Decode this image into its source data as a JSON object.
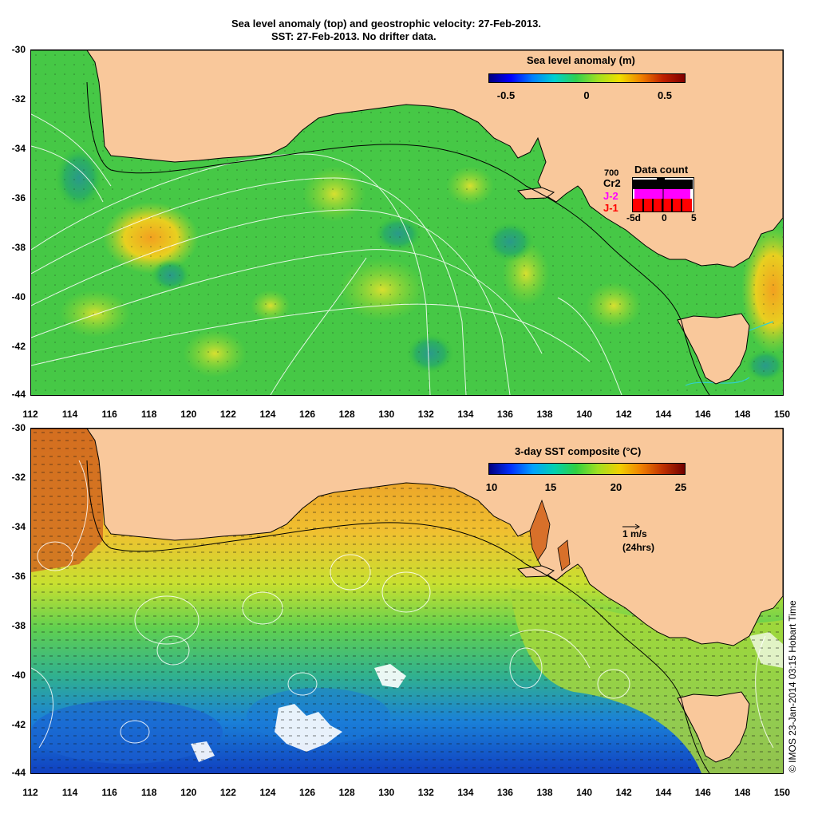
{
  "title": {
    "line1": "Sea level anomaly (top) and geostrophic velocity: 27-Feb-2013.",
    "line2": "SST: 27-Feb-2013. No drifter data."
  },
  "axes": {
    "lat_ticks": [
      "-30",
      "-32",
      "-34",
      "-36",
      "-38",
      "-40",
      "-42",
      "-44"
    ],
    "lon_ticks": [
      "112",
      "114",
      "116",
      "118",
      "120",
      "122",
      "124",
      "126",
      "128",
      "130",
      "132",
      "134",
      "136",
      "138",
      "140",
      "142",
      "144",
      "146",
      "148",
      "150"
    ]
  },
  "top_panel": {
    "colorbar_title": "Sea level anomaly (m)",
    "colorbar_labels": [
      "-0.5",
      "0",
      "0.5"
    ],
    "data_count": {
      "title": "Data count",
      "max_label": "700",
      "sat_cr2": "Cr2",
      "sat_j2": "J-2",
      "sat_j1": "J-1",
      "x_labels": [
        "-5d",
        "0",
        "5"
      ],
      "cr2_color": "#000000",
      "j2_color": "#ff00ff",
      "j1_color": "#ff0000"
    }
  },
  "bottom_panel": {
    "colorbar_title": "3-day SST composite (°C)",
    "colorbar_labels": [
      "10",
      "15",
      "20",
      "25"
    ],
    "vector_scale_label": "1 m/s",
    "vector_scale_sub": "(24hrs)"
  },
  "credit": "© IMOS 23-Jan-2014 03:15 Hobart Time",
  "colors": {
    "land": "#f9c89b",
    "slа_ocean": "#3fcf3f",
    "sst_warm": "#f0b030",
    "sst_mid": "#50d050",
    "sst_cool": "#2090e0"
  },
  "map_extent": {
    "lon": [
      112,
      150
    ],
    "lat": [
      -44,
      -30
    ]
  }
}
